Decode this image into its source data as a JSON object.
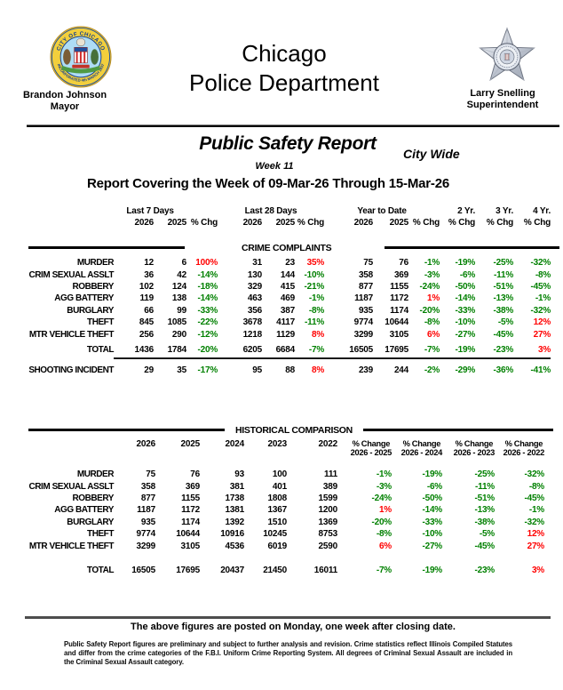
{
  "header": {
    "department_line1": "Chicago",
    "department_line2": "Police Department",
    "mayor": {
      "name": "Brandon Johnson",
      "title": "Mayor"
    },
    "superintendent": {
      "name": "Larry Snelling",
      "title": "Superintendent"
    },
    "icons": {
      "left": "chicago-city-seal",
      "right": "cpd-star-badge"
    }
  },
  "report": {
    "title": "Public Safety Report",
    "scope": "City Wide",
    "week_label": "Week 11",
    "coverage": "Report Covering the Week of 09-Mar-26 Through 15-Mar-26"
  },
  "colors": {
    "increase_pct": "#ff0000",
    "decrease_pct": "#008000"
  },
  "crime_complaints": {
    "section_title": "CRIME COMPLAINTS",
    "group_headers": [
      "Last 7 Days",
      "Last 28 Days",
      "Year to Date",
      "2 Yr.",
      "3 Yr.",
      "4 Yr."
    ],
    "sub_headers": [
      "2026",
      "2025",
      "% Chg",
      "2026",
      "2025",
      "% Chg",
      "2026",
      "2025",
      "% Chg",
      "% Chg",
      "% Chg",
      "% Chg"
    ],
    "rows": [
      {
        "label": "MURDER",
        "values": [
          "12",
          "6",
          "100%",
          "31",
          "23",
          "35%",
          "75",
          "76",
          "-1%",
          "-19%",
          "-25%",
          "-32%"
        ]
      },
      {
        "label": "CRIM SEXUAL ASSLT",
        "values": [
          "36",
          "42",
          "-14%",
          "130",
          "144",
          "-10%",
          "358",
          "369",
          "-3%",
          "-6%",
          "-11%",
          "-8%"
        ]
      },
      {
        "label": "ROBBERY",
        "values": [
          "102",
          "124",
          "-18%",
          "329",
          "415",
          "-21%",
          "877",
          "1155",
          "-24%",
          "-50%",
          "-51%",
          "-45%"
        ]
      },
      {
        "label": "AGG BATTERY",
        "values": [
          "119",
          "138",
          "-14%",
          "463",
          "469",
          "-1%",
          "1187",
          "1172",
          "1%",
          "-14%",
          "-13%",
          "-1%"
        ]
      },
      {
        "label": "BURGLARY",
        "values": [
          "66",
          "99",
          "-33%",
          "356",
          "387",
          "-8%",
          "935",
          "1174",
          "-20%",
          "-33%",
          "-38%",
          "-32%"
        ]
      },
      {
        "label": "THEFT",
        "values": [
          "845",
          "1085",
          "-22%",
          "3678",
          "4117",
          "-11%",
          "9774",
          "10644",
          "-8%",
          "-10%",
          "-5%",
          "12%"
        ]
      },
      {
        "label": "MTR VEHICLE THEFT",
        "values": [
          "256",
          "290",
          "-12%",
          "1218",
          "1129",
          "8%",
          "3299",
          "3105",
          "6%",
          "-27%",
          "-45%",
          "27%"
        ]
      }
    ],
    "total": {
      "label": "TOTAL",
      "values": [
        "1436",
        "1784",
        "-20%",
        "6205",
        "6684",
        "-7%",
        "16505",
        "17695",
        "-7%",
        "-19%",
        "-23%",
        "3%"
      ]
    },
    "shooting": {
      "label": "SHOOTING INCIDENT",
      "values": [
        "29",
        "35",
        "-17%",
        "95",
        "88",
        "8%",
        "239",
        "244",
        "-2%",
        "-29%",
        "-36%",
        "-41%"
      ]
    }
  },
  "historical": {
    "section_title": "HISTORICAL COMPARISON",
    "year_headers": [
      "2026",
      "2025",
      "2024",
      "2023",
      "2022"
    ],
    "pct_headers": [
      [
        "% Change",
        "2026 - 2025"
      ],
      [
        "% Change",
        "2026 - 2024"
      ],
      [
        "% Change",
        "2026 - 2023"
      ],
      [
        "% Change",
        "2026 - 2022"
      ]
    ],
    "rows": [
      {
        "label": "MURDER",
        "values": [
          "75",
          "76",
          "93",
          "100",
          "111",
          "-1%",
          "-19%",
          "-25%",
          "-32%"
        ]
      },
      {
        "label": "CRIM SEXUAL ASSLT",
        "values": [
          "358",
          "369",
          "381",
          "401",
          "389",
          "-3%",
          "-6%",
          "-11%",
          "-8%"
        ]
      },
      {
        "label": "ROBBERY",
        "values": [
          "877",
          "1155",
          "1738",
          "1808",
          "1599",
          "-24%",
          "-50%",
          "-51%",
          "-45%"
        ]
      },
      {
        "label": "AGG BATTERY",
        "values": [
          "1187",
          "1172",
          "1381",
          "1367",
          "1200",
          "1%",
          "-14%",
          "-13%",
          "-1%"
        ]
      },
      {
        "label": "BURGLARY",
        "values": [
          "935",
          "1174",
          "1392",
          "1510",
          "1369",
          "-20%",
          "-33%",
          "-38%",
          "-32%"
        ]
      },
      {
        "label": "THEFT",
        "values": [
          "9774",
          "10644",
          "10916",
          "10245",
          "8753",
          "-8%",
          "-10%",
          "-5%",
          "12%"
        ]
      },
      {
        "label": "MTR VEHICLE THEFT",
        "values": [
          "3299",
          "3105",
          "4536",
          "6019",
          "2590",
          "6%",
          "-27%",
          "-45%",
          "27%"
        ]
      }
    ],
    "total": {
      "label": "TOTAL",
      "values": [
        "16505",
        "17695",
        "20437",
        "21450",
        "16011",
        "-7%",
        "-19%",
        "-23%",
        "3%"
      ]
    }
  },
  "footer": {
    "posted_note": "The above figures are posted on Monday, one week after closing date.",
    "disclaimer": "Public Safety Report figures are preliminary and subject to further analysis and revision.  Crime statistics reflect Illinois Compiled Statutes and differ from the crime categories of the F.B.I. Uniform Crime Reporting System.  All degrees of Criminal Sexual Assault are included in the Criminal Sexual Assault category."
  }
}
